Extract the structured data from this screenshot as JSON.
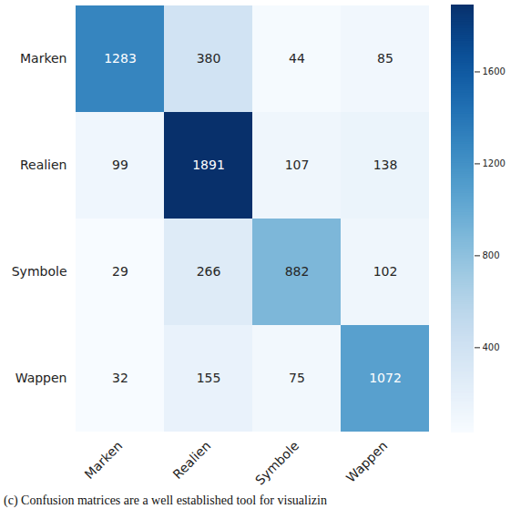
{
  "chart_data": {
    "type": "heatmap",
    "caption": "(c) Confusion matrices are a well established tool for visualizin",
    "x_categories": [
      "Marken",
      "Realien",
      "Symbole",
      "Wappen"
    ],
    "y_categories": [
      "Marken",
      "Realien",
      "Symbole",
      "Wappen"
    ],
    "values": [
      [
        1283,
        380,
        44,
        85
      ],
      [
        99,
        1891,
        107,
        138
      ],
      [
        29,
        266,
        882,
        102
      ],
      [
        32,
        155,
        75,
        1072
      ]
    ],
    "color": "Blues",
    "color_range": [
      29,
      1891
    ],
    "color_ticks": [
      400,
      800,
      1200,
      1600
    ],
    "data_labels": true
  }
}
